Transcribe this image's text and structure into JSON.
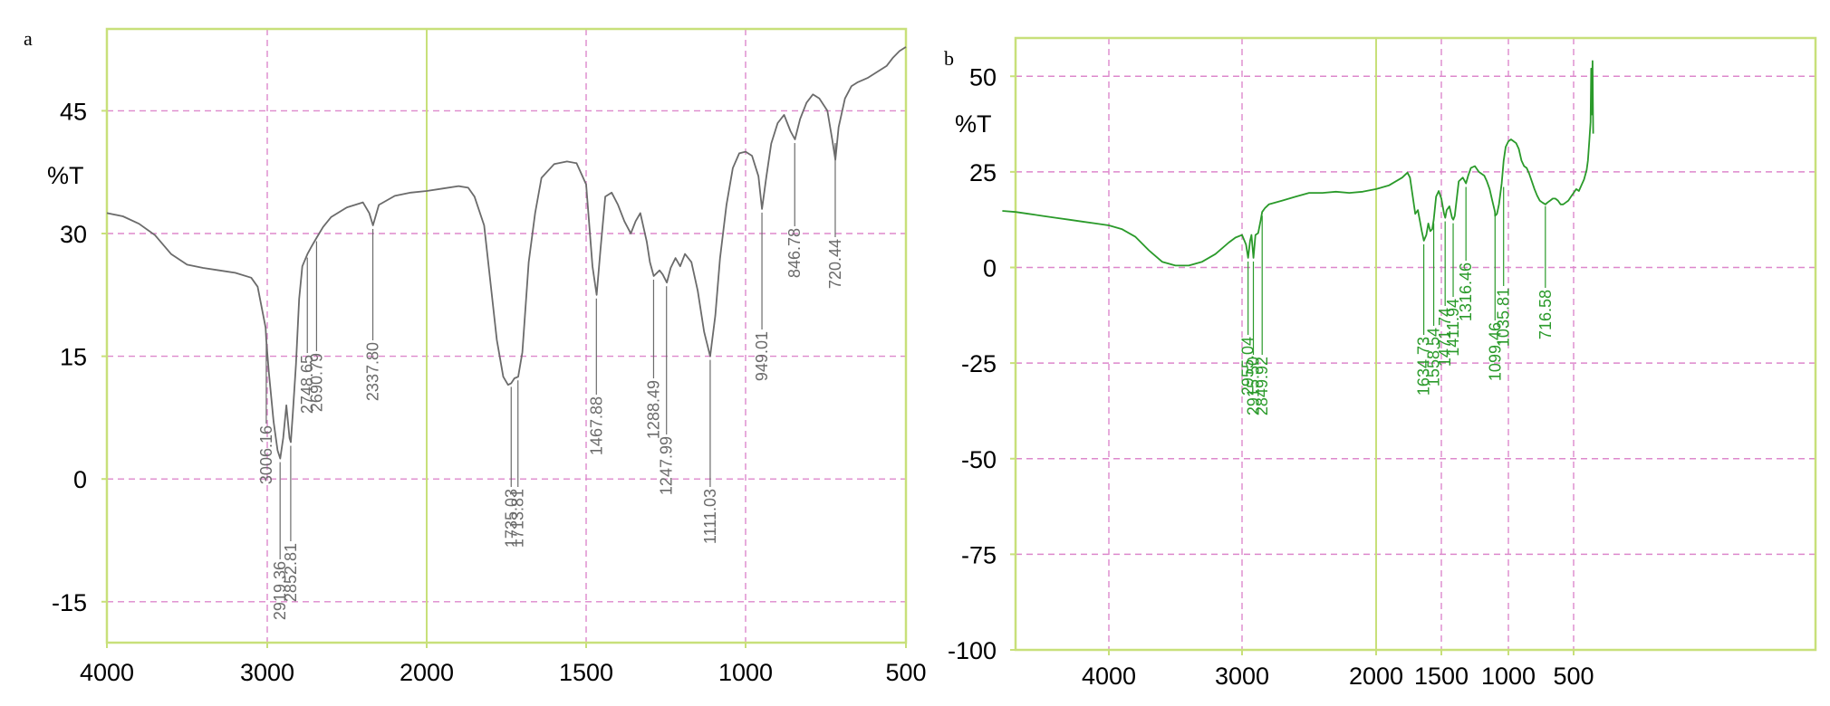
{
  "chart_data": [
    {
      "panel": "a",
      "type": "line",
      "ylabel": "%T",
      "xlabel": "",
      "xlim": [
        4000,
        500
      ],
      "ylim": [
        -20,
        55
      ],
      "x_ticks": [
        4000,
        3000,
        2000,
        1500,
        1000,
        500
      ],
      "x_tick_labels": [
        "4000",
        "3000",
        "2000",
        "1500",
        "1000",
        "500"
      ],
      "y_ticks": [
        45,
        30,
        15,
        0,
        -15
      ],
      "y_tick_labels": [
        "45",
        "30",
        "15",
        "0",
        "-15"
      ],
      "grid": true,
      "line_color": "#6b6b6b",
      "frame_color": "#c8e07a",
      "grid_color": "#dd88cc",
      "series": [
        {
          "x": [
            4000,
            3900,
            3800,
            3700,
            3600,
            3500,
            3400,
            3300,
            3200,
            3100,
            3060,
            3040,
            3010,
            3006,
            2990,
            2960,
            2935,
            2919,
            2900,
            2880,
            2860,
            2852,
            2840,
            2820,
            2800,
            2780,
            2748,
            2720,
            2690,
            2650,
            2600,
            2500,
            2400,
            2360,
            2337,
            2300,
            2200,
            2100,
            2000,
            1950,
            1900,
            1870,
            1850,
            1820,
            1800,
            1780,
            1760,
            1745,
            1735,
            1725,
            1713,
            1700,
            1690,
            1680,
            1660,
            1640,
            1600,
            1560,
            1530,
            1500,
            1480,
            1467,
            1455,
            1440,
            1420,
            1400,
            1380,
            1360,
            1345,
            1330,
            1310,
            1300,
            1288,
            1270,
            1260,
            1247,
            1235,
            1220,
            1205,
            1190,
            1170,
            1150,
            1130,
            1111,
            1095,
            1080,
            1060,
            1040,
            1020,
            1000,
            980,
            960,
            949,
            935,
            920,
            900,
            880,
            860,
            846,
            830,
            810,
            790,
            770,
            745,
            730,
            720,
            710,
            690,
            670,
            650,
            620,
            600,
            580,
            560,
            540,
            520,
            500
          ],
          "y": [
            32.5,
            32.1,
            31.2,
            29.8,
            27.5,
            26.2,
            25.8,
            25.5,
            25.2,
            24.6,
            23.5,
            21.5,
            18.5,
            17.0,
            13.0,
            7.0,
            3.5,
            2.5,
            5.0,
            9.0,
            5.0,
            4.5,
            8.0,
            14.0,
            22.0,
            26.0,
            27.5,
            28.5,
            29.5,
            30.8,
            32.0,
            33.2,
            33.8,
            32.5,
            31.0,
            33.5,
            34.6,
            35.0,
            35.2,
            35.5,
            35.8,
            35.6,
            34.5,
            31.0,
            24.0,
            17.0,
            12.5,
            11.5,
            11.7,
            12.3,
            12.5,
            15.5,
            21.0,
            26.5,
            32.5,
            36.8,
            38.5,
            38.8,
            38.6,
            36.0,
            26.0,
            22.5,
            28.0,
            34.5,
            35.0,
            33.5,
            31.5,
            30.0,
            31.5,
            32.5,
            29.0,
            26.5,
            24.8,
            25.5,
            25.0,
            24.0,
            25.8,
            27.0,
            26.0,
            27.5,
            26.5,
            23.0,
            18.0,
            15.0,
            20.0,
            27.0,
            33.5,
            38.0,
            39.8,
            40.0,
            39.5,
            37.0,
            33.0,
            37.0,
            41.0,
            43.5,
            44.5,
            42.5,
            41.5,
            44.0,
            46.0,
            47.0,
            46.5,
            45.0,
            41.5,
            39.0,
            43.0,
            46.5,
            48.0,
            48.5,
            49.0,
            49.5,
            50.0,
            50.5,
            51.5,
            52.3,
            52.8
          ]
        }
      ],
      "annotations": [
        "3006.16",
        "2919.36",
        "2852.81",
        "2748.65",
        "2690.79",
        "2337.80",
        "1735.03",
        "1713.81",
        "1467.88",
        "1288.49",
        "1247.99",
        "1111.03",
        "949.01",
        "846.78",
        "720.44"
      ]
    },
    {
      "panel": "b",
      "type": "line",
      "ylabel": "%T",
      "xlabel": "",
      "xlim": [
        4800,
        350
      ],
      "ylim": [
        -100,
        60
      ],
      "x_ticks": [
        4000,
        3000,
        2000,
        1500,
        1000,
        500
      ],
      "x_tick_labels": [
        "4000",
        "3000",
        "2000",
        "1500",
        "1000",
        "500"
      ],
      "y_ticks": [
        50,
        25,
        0,
        -25,
        -50,
        -75,
        -100
      ],
      "y_tick_labels": [
        "50",
        "25",
        "0",
        "-25",
        "-50",
        "-75",
        "-100"
      ],
      "grid": true,
      "line_color": "#2a9a2a",
      "frame_color": "#c8e07a",
      "grid_color": "#dd88cc",
      "series": [
        {
          "x": [
            4800,
            4700,
            4600,
            4500,
            4400,
            4300,
            4200,
            4100,
            4000,
            3900,
            3800,
            3700,
            3600,
            3500,
            3400,
            3300,
            3200,
            3100,
            3050,
            3000,
            2970,
            2955,
            2940,
            2930,
            2915,
            2900,
            2880,
            2860,
            2850,
            2830,
            2800,
            2700,
            2600,
            2500,
            2400,
            2300,
            2200,
            2100,
            2000,
            1900,
            1800,
            1760,
            1740,
            1700,
            1680,
            1650,
            1634,
            1615,
            1600,
            1585,
            1570,
            1558,
            1540,
            1520,
            1500,
            1480,
            1471,
            1460,
            1440,
            1420,
            1411,
            1400,
            1370,
            1340,
            1316,
            1300,
            1280,
            1250,
            1220,
            1200,
            1180,
            1160,
            1140,
            1120,
            1100,
            1099,
            1085,
            1070,
            1050,
            1035,
            1020,
            1000,
            980,
            960,
            940,
            920,
            900,
            880,
            860,
            840,
            820,
            800,
            780,
            760,
            740,
            716,
            700,
            680,
            660,
            640,
            620,
            600,
            580,
            560,
            540,
            520,
            500,
            480,
            460,
            440,
            420,
            400,
            390,
            380,
            370,
            365,
            360,
            355,
            350
          ],
          "y": [
            14.8,
            14.5,
            14.0,
            13.5,
            13.0,
            12.5,
            12.0,
            11.5,
            11.0,
            10.0,
            8.0,
            4.5,
            1.5,
            0.5,
            0.5,
            1.5,
            3.5,
            6.5,
            7.8,
            8.5,
            6.0,
            2.5,
            7.0,
            8.5,
            2.5,
            8.5,
            9.0,
            12.5,
            14.5,
            15.5,
            16.5,
            17.5,
            18.5,
            19.5,
            19.5,
            19.8,
            19.5,
            19.8,
            20.5,
            21.5,
            23.5,
            24.8,
            23.5,
            14.0,
            15.0,
            9.5,
            7.0,
            8.5,
            11.5,
            9.5,
            10.0,
            12.5,
            18.5,
            20.0,
            18.0,
            14.0,
            13.0,
            15.0,
            16.0,
            13.0,
            12.5,
            13.5,
            22.5,
            23.5,
            22.0,
            24.0,
            26.0,
            26.5,
            25.0,
            24.5,
            24.0,
            22.5,
            20.5,
            17.5,
            14.5,
            13.5,
            14.0,
            16.5,
            22.0,
            28.0,
            31.5,
            33.0,
            33.5,
            33.0,
            32.5,
            31.0,
            28.0,
            26.5,
            26.0,
            24.5,
            22.5,
            20.5,
            18.8,
            17.5,
            17.0,
            16.5,
            17.0,
            17.5,
            18.0,
            18.0,
            17.5,
            16.5,
            16.5,
            17.0,
            17.5,
            18.5,
            19.5,
            20.5,
            20.0,
            21.5,
            23.0,
            25.5,
            28.0,
            33.0,
            38.0,
            52.0,
            40.0,
            54.0,
            35.0
          ]
        }
      ],
      "annotations": [
        "2955.04",
        "2915.50",
        "2849.92",
        "1634.73",
        "1558.54",
        "1471.74",
        "1411.94",
        "1316.46",
        "1099.46",
        "1035.81",
        "716.58"
      ]
    }
  ],
  "panels": {
    "a": {
      "letter": "a"
    },
    "b": {
      "letter": "b"
    }
  }
}
